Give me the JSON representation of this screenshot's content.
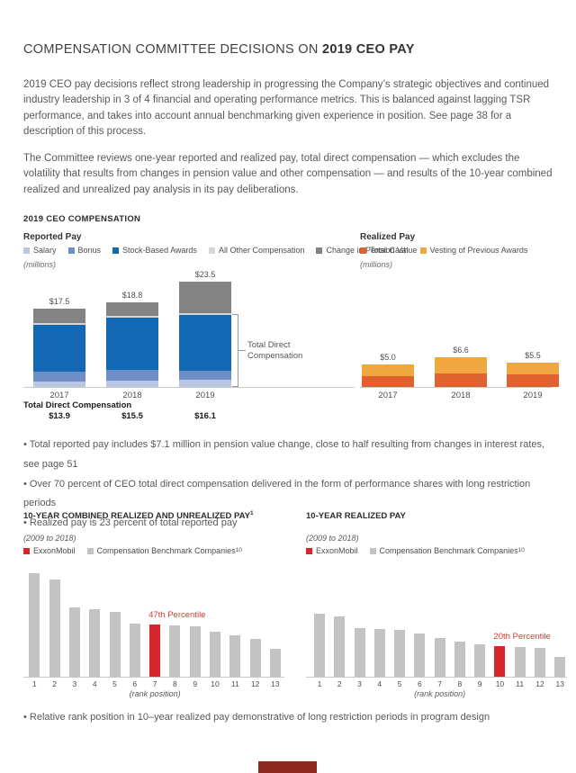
{
  "header": {
    "title_regular": "COMPENSATION COMMITTEE DECISIONS ON ",
    "title_bold": "2019 CEO PAY"
  },
  "intro": {
    "paragraphs": [
      "2019 CEO pay decisions reflect strong leadership in progressing the Company’s strategic objectives and continued industry leadership in 3 of 4 financial and operating performance metrics. This is balanced against lagging TSR performance, and takes into account annual benchmarking given experience in position. See page 38 for a description of this process.",
      "The Committee reviews one-year reported and realized pay, total direct compensation — which excludes the volatility that results from changes in pension value and other compensation — and results of the 10-year combined realized and unrealized pay analysis in its pay deliberations."
    ]
  },
  "section_label": "2019 CEO COMPENSATION",
  "bullets_mid": [
    "Total reported pay includes $7.1 million in pension value change, close to half resulting from changes in interest rates, see page 51",
    "Over 70 percent of CEO total direct compensation delivered in the form of performance shares with long restriction periods",
    "Realized pay is 23 percent of total reported pay"
  ],
  "bullet_bottom": "Relative rank position in 10–year realized pay demonstrative of long restriction periods in program design",
  "footer_marker": {
    "color": "#8c2a20"
  },
  "chart_data": [
    {
      "id": "reported-pay",
      "type": "bar",
      "stacked": true,
      "title": "Reported Pay",
      "units_note": "(millions)",
      "categories": [
        "2017",
        "2018",
        "2019"
      ],
      "series": [
        {
          "name": "Salary",
          "color": "#b9c6e4",
          "values": [
            1.3,
            1.5,
            1.6
          ]
        },
        {
          "name": "Bonus",
          "color": "#6d8ec7",
          "values": [
            2.2,
            2.4,
            2.0
          ]
        },
        {
          "name": "Stock-Based Awards",
          "color": "#1268b3",
          "values": [
            10.4,
            11.6,
            12.5
          ]
        },
        {
          "name": "All Other Compensation",
          "color": "#d6d6d6",
          "values": [
            0.3,
            0.3,
            0.3
          ]
        },
        {
          "name": "Change in Pension Value",
          "color": "#838383",
          "values": [
            3.3,
            3.0,
            7.1
          ]
        }
      ],
      "bar_totals_labels": [
        "$17.5",
        "$18.8",
        "$23.5"
      ],
      "tdc_label": "Total Direct Compensation",
      "tdc_values": [
        "$13.9",
        "$15.5",
        "$16.1"
      ],
      "bracket_label_line1": "Total Direct",
      "bracket_label_line2": "Compensation",
      "ylim": [
        0,
        26.4
      ],
      "legend_position": "top"
    },
    {
      "id": "realized-pay",
      "type": "bar",
      "stacked": true,
      "title": "Realized Pay",
      "units_note": "(millions)",
      "categories": [
        "2017",
        "2018",
        "2019"
      ],
      "series": [
        {
          "name": "Total Cash",
          "color": "#e0612d",
          "values": [
            2.4,
            3.1,
            2.8
          ]
        },
        {
          "name": "Vesting of Previous Awards",
          "color": "#f0a73f",
          "values": [
            2.6,
            3.5,
            2.7
          ]
        }
      ],
      "bar_totals_labels": [
        "$5.0",
        "$6.6",
        "$5.5"
      ],
      "ylim": [
        0,
        26.4
      ],
      "legend_position": "top"
    },
    {
      "id": "ten-year-combined-realized-unrealized-pay",
      "type": "bar",
      "title": "10-YEAR COMBINED REALIZED AND UNREALIZED PAY",
      "title_superscript": "1",
      "subtitle": "(2009 to 2018)",
      "legend": [
        {
          "name": "ExxonMobil",
          "superscript": "",
          "color": "#d7272e"
        },
        {
          "name": "Compensation Benchmark Companies",
          "superscript": "10",
          "color": "#c3c3c3"
        }
      ],
      "categories": [
        "1",
        "2",
        "3",
        "4",
        "5",
        "6",
        "7",
        "8",
        "9",
        "10",
        "11",
        "12",
        "13"
      ],
      "values_relative": [
        115,
        108,
        77,
        75,
        72,
        59,
        58,
        57,
        56,
        50,
        46,
        42,
        31
      ],
      "highlight_index": 6,
      "highlight_label": "47th Percentile",
      "xlabel": "(rank position)"
    },
    {
      "id": "ten-year-realized-pay",
      "type": "bar",
      "title": "10-YEAR REALIZED PAY",
      "title_superscript": "",
      "subtitle": "(2009 to 2018)",
      "legend": [
        {
          "name": "ExxonMobil",
          "superscript": "",
          "color": "#d7272e"
        },
        {
          "name": "Compensation Benchmark Companies",
          "superscript": "10",
          "color": "#c3c3c3"
        }
      ],
      "categories": [
        "1",
        "2",
        "3",
        "4",
        "5",
        "6",
        "7",
        "8",
        "9",
        "10",
        "11",
        "12",
        "13"
      ],
      "values_relative": [
        70,
        67,
        54,
        53,
        52,
        48,
        43,
        39,
        36,
        34,
        33,
        32,
        22
      ],
      "highlight_index": 9,
      "highlight_label": "20th Percentile",
      "xlabel": "(rank position)"
    }
  ]
}
